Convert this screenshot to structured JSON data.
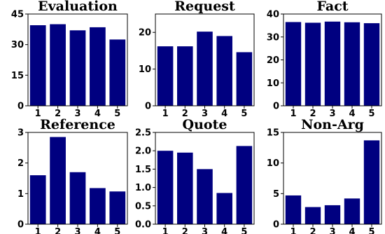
{
  "bar_color": "#000080",
  "chart_data": [
    {
      "type": "bar",
      "title": "Evaluation",
      "categories": [
        "1",
        "2",
        "3",
        "4",
        "5"
      ],
      "values": [
        39.5,
        40,
        37,
        38.5,
        32.5
      ],
      "ylim": [
        0,
        45
      ],
      "yticks": [
        0,
        15,
        30,
        45
      ],
      "ytick_labels": [
        "0",
        "15",
        "30",
        "45"
      ]
    },
    {
      "type": "bar",
      "title": "Request",
      "categories": [
        "1",
        "2",
        "3",
        "4",
        "5"
      ],
      "values": [
        16.2,
        16.2,
        20.2,
        19,
        14.6
      ],
      "ylim": [
        0,
        25
      ],
      "yticks": [
        0,
        10,
        20
      ],
      "ytick_labels": [
        "0",
        "10",
        "20"
      ]
    },
    {
      "type": "bar",
      "title": "Fact",
      "categories": [
        "1",
        "2",
        "3",
        "4",
        "5"
      ],
      "values": [
        36.5,
        36.2,
        36.7,
        36.4,
        36
      ],
      "ylim": [
        0,
        40
      ],
      "yticks": [
        0,
        10,
        20,
        30,
        40
      ],
      "ytick_labels": [
        "0",
        "10",
        "20",
        "30",
        "40"
      ]
    },
    {
      "type": "bar",
      "title": "Reference",
      "categories": [
        "1",
        "2",
        "3",
        "4",
        "5"
      ],
      "values": [
        1.6,
        2.85,
        1.7,
        1.18,
        1.07
      ],
      "ylim": [
        0,
        3
      ],
      "yticks": [
        0,
        1,
        2,
        3
      ],
      "ytick_labels": [
        "0",
        "1",
        "2",
        "3"
      ]
    },
    {
      "type": "bar",
      "title": "Quote",
      "categories": [
        "1",
        "2",
        "3",
        "4",
        "5"
      ],
      "values": [
        2.0,
        1.95,
        1.5,
        0.85,
        2.13
      ],
      "ylim": [
        0,
        2.5
      ],
      "yticks": [
        0,
        0.5,
        1.0,
        1.5,
        2.0,
        2.5
      ],
      "ytick_labels": [
        "0.0",
        "0.5",
        "1.0",
        "1.5",
        "2.0",
        "2.5"
      ]
    },
    {
      "type": "bar",
      "title": "Non-Arg",
      "categories": [
        "1",
        "2",
        "3",
        "4",
        "5"
      ],
      "values": [
        4.7,
        2.8,
        3.1,
        4.2,
        13.7
      ],
      "ylim": [
        0,
        15
      ],
      "yticks": [
        0,
        5,
        10,
        15
      ],
      "ytick_labels": [
        "0",
        "5",
        "10",
        "15"
      ]
    }
  ]
}
